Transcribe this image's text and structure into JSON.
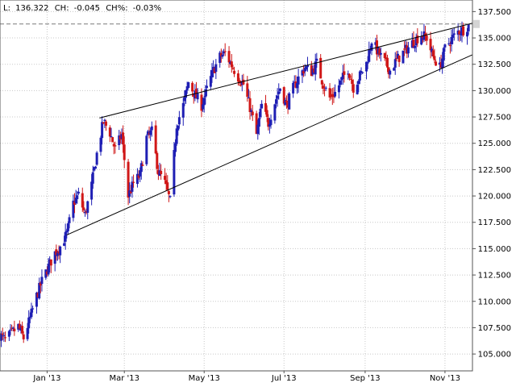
{
  "header": {
    "last_label": "L:",
    "last_value": "136.322",
    "change_label": "CH:",
    "change_value": "-0.045",
    "change_pct_label": "CH%:",
    "change_pct_value": "-0.03%"
  },
  "colors": {
    "background": "#ffffff",
    "up_bar": "#1f1fb4",
    "down_bar": "#d01818",
    "trendline": "#000000",
    "grid": "#c8c8c8",
    "last_price_line": "#7a7a7a",
    "price_marker": "#d4d4d4"
  },
  "chart_data": {
    "type": "ohlc",
    "grid": true,
    "legend": "none",
    "x_axis": {
      "tick_labels": [
        "Jan '13",
        "Mar '13",
        "May '13",
        "Jul '13",
        "Sep '13",
        "Nov '13"
      ],
      "tick_dates": [
        "2013-01-01",
        "2013-03-01",
        "2013-05-01",
        "2013-07-01",
        "2013-09-01",
        "2013-11-01"
      ],
      "range": [
        "2012-11-26",
        "2013-11-22"
      ]
    },
    "y_axis": {
      "position": "right",
      "range": [
        103.4,
        138.6
      ],
      "tick_labels": [
        "105.000",
        "107.500",
        "110.000",
        "112.500",
        "115.000",
        "117.500",
        "120.000",
        "122.500",
        "125.000",
        "127.500",
        "130.000",
        "132.500",
        "135.000",
        "137.500"
      ],
      "tick_values": [
        105,
        107.5,
        110,
        112.5,
        115,
        117.5,
        120,
        122.5,
        125,
        127.5,
        130,
        132.5,
        135,
        137.5
      ]
    },
    "last_price": 136.322,
    "series": [
      {
        "values": [
          {
            "date": "2012-11-26",
            "close": 106.8
          },
          {
            "date": "2012-11-30",
            "close": 106.3
          },
          {
            "date": "2012-12-05",
            "close": 107.0
          },
          {
            "date": "2012-12-10",
            "close": 107.6
          },
          {
            "date": "2012-12-14",
            "close": 106.5
          },
          {
            "date": "2012-12-19",
            "close": 108.4
          },
          {
            "date": "2012-12-24",
            "close": 110.5
          },
          {
            "date": "2012-12-28",
            "close": 111.9
          },
          {
            "date": "2013-01-02",
            "close": 113.3
          },
          {
            "date": "2013-01-07",
            "close": 114.6
          },
          {
            "date": "2013-01-11",
            "close": 115.2
          },
          {
            "date": "2013-01-16",
            "close": 116.4
          },
          {
            "date": "2013-01-21",
            "close": 119.3
          },
          {
            "date": "2013-01-25",
            "close": 120.1
          },
          {
            "date": "2013-01-30",
            "close": 118.2
          },
          {
            "date": "2013-02-04",
            "close": 121.0
          },
          {
            "date": "2013-02-08",
            "close": 124.0
          },
          {
            "date": "2013-02-13",
            "close": 127.1
          },
          {
            "date": "2013-02-18",
            "close": 126.0
          },
          {
            "date": "2013-02-22",
            "close": 124.4
          },
          {
            "date": "2013-02-27",
            "close": 125.8
          },
          {
            "date": "2013-03-04",
            "close": 120.0
          },
          {
            "date": "2013-03-08",
            "close": 121.2
          },
          {
            "date": "2013-03-13",
            "close": 122.0
          },
          {
            "date": "2013-03-18",
            "close": 125.5
          },
          {
            "date": "2013-03-22",
            "close": 126.1
          },
          {
            "date": "2013-03-27",
            "close": 122.3
          },
          {
            "date": "2013-04-01",
            "close": 121.2
          },
          {
            "date": "2013-04-05",
            "close": 119.5
          },
          {
            "date": "2013-04-10",
            "close": 126.8
          },
          {
            "date": "2013-04-15",
            "close": 128.6
          },
          {
            "date": "2013-04-19",
            "close": 130.8
          },
          {
            "date": "2013-04-24",
            "close": 129.6
          },
          {
            "date": "2013-04-29",
            "close": 128.6
          },
          {
            "date": "2013-05-03",
            "close": 130.1
          },
          {
            "date": "2013-05-08",
            "close": 131.9
          },
          {
            "date": "2013-05-13",
            "close": 133.2
          },
          {
            "date": "2013-05-17",
            "close": 133.6
          },
          {
            "date": "2013-05-22",
            "close": 132.4
          },
          {
            "date": "2013-05-27",
            "close": 131.3
          },
          {
            "date": "2013-05-31",
            "close": 130.6
          },
          {
            "date": "2013-06-05",
            "close": 128.4
          },
          {
            "date": "2013-06-10",
            "close": 125.8
          },
          {
            "date": "2013-06-14",
            "close": 128.6
          },
          {
            "date": "2013-06-19",
            "close": 126.9
          },
          {
            "date": "2013-06-24",
            "close": 128.9
          },
          {
            "date": "2013-06-28",
            "close": 130.3
          },
          {
            "date": "2013-07-03",
            "close": 128.6
          },
          {
            "date": "2013-07-08",
            "close": 130.2
          },
          {
            "date": "2013-07-12",
            "close": 131.2
          },
          {
            "date": "2013-07-17",
            "close": 132.2
          },
          {
            "date": "2013-07-22",
            "close": 131.8
          },
          {
            "date": "2013-07-26",
            "close": 132.6
          },
          {
            "date": "2013-07-31",
            "close": 130.6
          },
          {
            "date": "2013-08-05",
            "close": 129.3
          },
          {
            "date": "2013-08-09",
            "close": 129.8
          },
          {
            "date": "2013-08-14",
            "close": 131.0
          },
          {
            "date": "2013-08-19",
            "close": 132.1
          },
          {
            "date": "2013-08-23",
            "close": 130.3
          },
          {
            "date": "2013-08-28",
            "close": 131.4
          },
          {
            "date": "2013-09-02",
            "close": 132.6
          },
          {
            "date": "2013-09-06",
            "close": 134.8
          },
          {
            "date": "2013-09-11",
            "close": 133.6
          },
          {
            "date": "2013-09-16",
            "close": 132.7
          },
          {
            "date": "2013-09-20",
            "close": 131.9
          },
          {
            "date": "2013-09-25",
            "close": 132.9
          },
          {
            "date": "2013-09-30",
            "close": 133.6
          },
          {
            "date": "2013-10-04",
            "close": 134.1
          },
          {
            "date": "2013-10-09",
            "close": 134.8
          },
          {
            "date": "2013-10-14",
            "close": 135.3
          },
          {
            "date": "2013-10-18",
            "close": 135.0
          },
          {
            "date": "2013-10-23",
            "close": 133.2
          },
          {
            "date": "2013-10-28",
            "close": 132.2
          },
          {
            "date": "2013-11-01",
            "close": 134.0
          },
          {
            "date": "2013-11-06",
            "close": 134.9
          },
          {
            "date": "2013-11-11",
            "close": 135.6
          },
          {
            "date": "2013-11-15",
            "close": 135.8
          },
          {
            "date": "2013-11-20",
            "close": 136.3
          }
        ]
      }
    ],
    "trendlines": [
      {
        "points": [
          {
            "date": "2013-01-16",
            "value": 116.3
          },
          {
            "date": "2013-11-22",
            "value": 133.4
          }
        ]
      },
      {
        "points": [
          {
            "date": "2013-02-10",
            "value": 127.4
          },
          {
            "date": "2013-11-22",
            "value": 136.4
          }
        ]
      }
    ]
  }
}
